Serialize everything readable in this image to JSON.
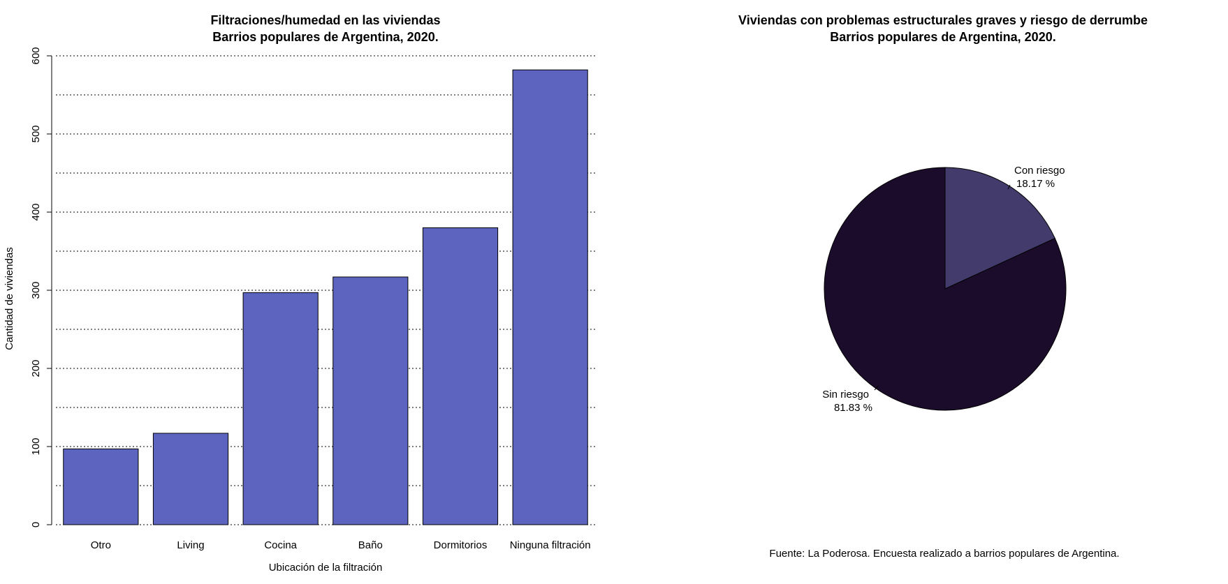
{
  "chart_data": [
    {
      "type": "bar",
      "title_lines": [
        "Filtraciones/humedad en las viviendas",
        "Barrios populares de Argentina, 2020."
      ],
      "xlabel": "Ubicación de la filtración",
      "ylabel": "Cantidad de viviendas",
      "categories": [
        "Otro",
        "Living",
        "Cocina",
        "Baño",
        "Dormitorios",
        "Ninguna filtración"
      ],
      "values": [
        97,
        117,
        297,
        317,
        380,
        582
      ],
      "ylim": [
        0,
        600
      ],
      "yticks": [
        0,
        100,
        200,
        300,
        400,
        500,
        600
      ],
      "gridlines": [
        0,
        50,
        100,
        150,
        200,
        250,
        300,
        350,
        400,
        450,
        500,
        550,
        600
      ],
      "grid": "dotted horizontal",
      "bar_color": "#5c64c0"
    },
    {
      "type": "pie",
      "title_lines": [
        "Viviendas con problemas estructurales graves y riesgo de derrumbe",
        "Barrios populares de Argentina, 2020."
      ],
      "slices": [
        {
          "label": "Con riesgo",
          "percent_label": "18.17 %",
          "value": 18.17,
          "color": "#423b6b"
        },
        {
          "label": "Sin riesgo",
          "percent_label": "81.83 %",
          "value": 81.83,
          "color": "#1c0c2b"
        }
      ],
      "caption": "Fuente: La Poderosa. Encuesta realizado a barrios populares de Argentina."
    }
  ]
}
